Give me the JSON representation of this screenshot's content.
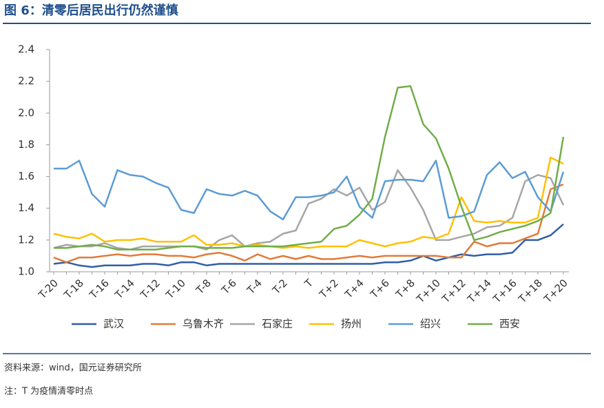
{
  "header": {
    "title": "图 6：清零后居民出行仍然谨慎"
  },
  "chart_data": {
    "type": "line",
    "categories": [
      "T-20",
      null,
      "T-18",
      null,
      "T-16",
      null,
      "T-14",
      null,
      "T-12",
      null,
      "T-10",
      null,
      "T-8",
      null,
      "T-6",
      null,
      "T-4",
      null,
      "T-2",
      null,
      "T",
      null,
      "T+2",
      null,
      "T+4",
      null,
      "T+6",
      null,
      "T+8",
      null,
      "T+10",
      null,
      "T+12",
      null,
      "T+14",
      null,
      "T+16",
      null,
      "T+18",
      null,
      "T+20"
    ],
    "series": [
      {
        "name": "武汉",
        "color": "#2f5ea8",
        "values": [
          1.05,
          1.06,
          1.04,
          1.03,
          1.04,
          1.04,
          1.04,
          1.05,
          1.05,
          1.04,
          1.06,
          1.06,
          1.04,
          1.05,
          1.05,
          1.05,
          1.05,
          1.05,
          1.05,
          1.05,
          1.05,
          1.05,
          1.05,
          1.05,
          1.05,
          1.05,
          1.06,
          1.06,
          1.07,
          1.1,
          1.07,
          1.09,
          1.11,
          1.1,
          1.11,
          1.11,
          1.12,
          1.2,
          1.2,
          1.23,
          1.3
        ]
      },
      {
        "name": "乌鲁木齐",
        "color": "#e07b39",
        "values": [
          1.09,
          1.06,
          1.09,
          1.09,
          1.1,
          1.11,
          1.1,
          1.11,
          1.11,
          1.1,
          1.1,
          1.09,
          1.11,
          1.12,
          1.1,
          1.07,
          1.11,
          1.08,
          1.1,
          1.08,
          1.1,
          1.08,
          1.08,
          1.09,
          1.1,
          1.09,
          1.1,
          1.1,
          1.1,
          1.1,
          1.1,
          1.09,
          1.09,
          1.19,
          1.16,
          1.18,
          1.18,
          1.21,
          1.24,
          1.52,
          1.55
        ]
      },
      {
        "name": "石家庄",
        "color": "#a5a5a5",
        "values": [
          1.15,
          1.17,
          1.16,
          1.16,
          1.18,
          1.15,
          1.14,
          1.16,
          1.16,
          1.16,
          1.16,
          1.16,
          1.14,
          1.2,
          1.23,
          1.16,
          1.18,
          1.19,
          1.24,
          1.26,
          1.43,
          1.46,
          1.52,
          1.48,
          1.53,
          1.39,
          1.44,
          1.64,
          1.53,
          1.39,
          1.2,
          1.2,
          1.22,
          1.24,
          1.28,
          1.29,
          1.34,
          1.57,
          1.61,
          1.59,
          1.42
        ]
      },
      {
        "name": "扬州",
        "color": "#ffc000",
        "values": [
          1.24,
          1.22,
          1.21,
          1.24,
          1.19,
          1.2,
          1.2,
          1.21,
          1.19,
          1.19,
          1.19,
          1.23,
          1.17,
          1.17,
          1.18,
          1.16,
          1.17,
          1.16,
          1.15,
          1.16,
          1.15,
          1.16,
          1.16,
          1.16,
          1.2,
          1.18,
          1.16,
          1.18,
          1.19,
          1.22,
          1.21,
          1.24,
          1.47,
          1.32,
          1.31,
          1.32,
          1.31,
          1.31,
          1.34,
          1.72,
          1.68
        ]
      },
      {
        "name": "绍兴",
        "color": "#5b9bd5",
        "values": [
          1.65,
          1.65,
          1.7,
          1.49,
          1.41,
          1.64,
          1.61,
          1.6,
          1.56,
          1.53,
          1.39,
          1.37,
          1.52,
          1.49,
          1.48,
          1.51,
          1.48,
          1.38,
          1.33,
          1.47,
          1.47,
          1.48,
          1.5,
          1.6,
          1.41,
          1.34,
          1.57,
          1.58,
          1.58,
          1.57,
          1.7,
          1.34,
          1.35,
          1.38,
          1.61,
          1.69,
          1.59,
          1.63,
          1.47,
          1.38,
          1.63
        ]
      },
      {
        "name": "西安",
        "color": "#70ad47",
        "values": [
          1.15,
          1.15,
          1.16,
          1.17,
          1.16,
          1.14,
          1.14,
          1.14,
          1.14,
          1.15,
          1.16,
          1.16,
          1.15,
          1.15,
          1.15,
          1.16,
          1.16,
          1.16,
          1.16,
          1.17,
          1.18,
          1.19,
          1.27,
          1.29,
          1.36,
          1.46,
          1.85,
          2.16,
          2.17,
          1.93,
          1.84,
          1.65,
          1.41,
          1.2,
          1.22,
          1.25,
          1.27,
          1.29,
          1.32,
          1.37,
          1.85
        ]
      }
    ],
    "ylim": [
      1.0,
      2.4
    ],
    "yticks": [
      {
        "value": 1.0,
        "label": "1.0"
      },
      1.2,
      1.4,
      1.6,
      1.8,
      {
        "value": 2.0,
        "label": "2.0"
      },
      2.2,
      2.4
    ],
    "grid": false,
    "legend": "bottom"
  },
  "footer": {
    "source": "资料来源：wind，国元证券研究所",
    "note": "注：T 为疫情清零时点"
  }
}
